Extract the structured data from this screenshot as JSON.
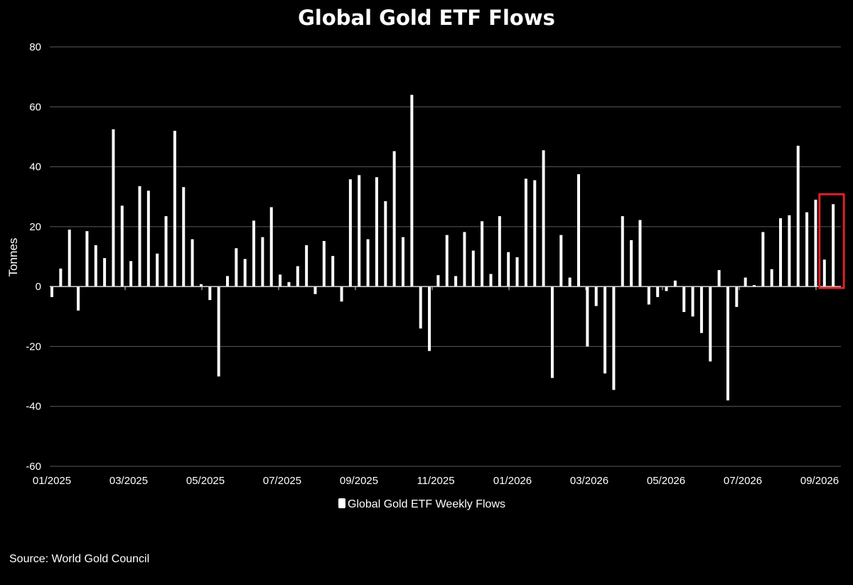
{
  "chart_data": {
    "type": "bar",
    "title": "Global Gold ETF Flows",
    "ylabel": "Tonnes",
    "xlabel": "",
    "ylim": [
      -60,
      80
    ],
    "yticks": [
      80,
      60,
      40,
      20,
      0,
      -20,
      -40,
      -60
    ],
    "xtick_labels": [
      "01/2025",
      "03/2025",
      "05/2025",
      "07/2025",
      "09/2025",
      "11/2025",
      "01/2026",
      "03/2026",
      "05/2026",
      "07/2026",
      "09/2026"
    ],
    "grid": true,
    "legend": {
      "position": "bottom-center"
    },
    "highlight": {
      "description": "last two weeks boxed in red",
      "color": "#e0202a"
    },
    "series": [
      {
        "name": "Global Gold ETF Weekly Flows",
        "color": "#ffffff",
        "values": [
          -3.5,
          6.0,
          19.0,
          -8.0,
          18.5,
          13.8,
          9.5,
          52.5,
          27.0,
          8.5,
          33.5,
          32.0,
          11.0,
          23.5,
          52.0,
          33.2,
          15.8,
          0.8,
          -4.5,
          -30.0,
          3.5,
          12.8,
          9.2,
          22.0,
          16.5,
          26.5,
          4.0,
          1.5,
          6.8,
          13.8,
          -2.5,
          15.2,
          10.2,
          -5.0,
          35.8,
          37.2,
          15.8,
          36.5,
          28.5,
          45.2,
          16.5,
          64.0,
          -14.0,
          -21.5,
          3.8,
          17.2,
          3.5,
          18.2,
          12.0,
          21.8,
          4.2,
          23.5,
          11.5,
          9.8,
          36.0,
          35.5,
          45.5,
          -30.5,
          17.2,
          3.0,
          37.5,
          -20.0,
          -6.5,
          -29.0,
          -34.5,
          23.5,
          15.5,
          22.2,
          -6.0,
          -3.5,
          -1.5,
          2.0,
          -8.5,
          -10.0,
          -15.5,
          -25.0,
          5.5,
          -38.0,
          -6.8,
          3.0,
          0.5,
          18.2,
          5.8,
          22.8,
          23.8,
          47.0,
          24.8,
          29.0,
          9.0,
          27.5
        ]
      }
    ]
  },
  "source": "Source: World Gold Council"
}
